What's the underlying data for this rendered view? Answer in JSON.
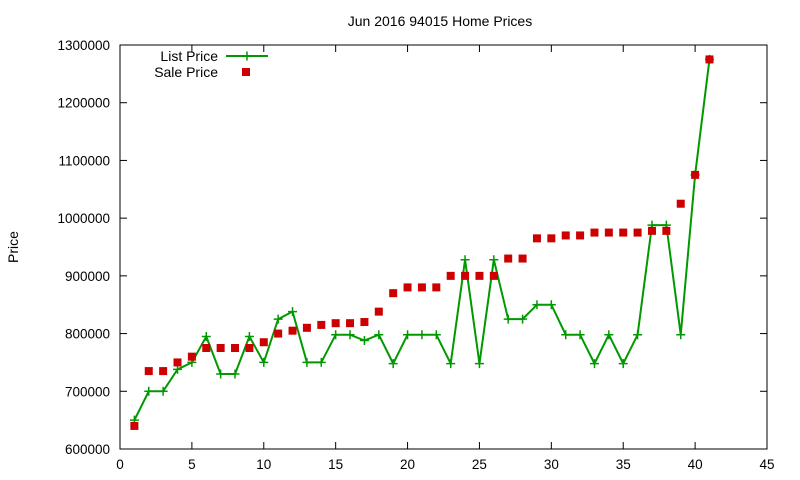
{
  "chart_data": {
    "type": "line",
    "title": "Jun 2016 94015 Home Prices",
    "xlabel": "",
    "ylabel": "Price",
    "xlim": [
      0,
      45
    ],
    "ylim": [
      600000,
      1300000
    ],
    "xticks": [
      0,
      5,
      10,
      15,
      20,
      25,
      30,
      35,
      40,
      45
    ],
    "yticks": [
      600000,
      700000,
      800000,
      900000,
      1000000,
      1100000,
      1200000,
      1300000
    ],
    "grid": false,
    "legend_placement": "top-left",
    "x": [
      1,
      2,
      3,
      4,
      5,
      6,
      7,
      8,
      9,
      10,
      11,
      12,
      13,
      14,
      15,
      16,
      17,
      18,
      19,
      20,
      21,
      22,
      23,
      24,
      25,
      26,
      27,
      28,
      29,
      30,
      31,
      32,
      33,
      34,
      35,
      36,
      37,
      38,
      39,
      40,
      41
    ],
    "series": [
      {
        "name": "List Price",
        "style": "line+cross",
        "color": "#009900",
        "values": [
          650000,
          700000,
          700000,
          738000,
          750000,
          795000,
          730000,
          730000,
          795000,
          750000,
          825000,
          838000,
          750000,
          750000,
          798000,
          798000,
          788000,
          798000,
          748000,
          798000,
          798000,
          798000,
          748000,
          928000,
          748000,
          928000,
          825000,
          825000,
          850000,
          850000,
          798000,
          798000,
          748000,
          798000,
          748000,
          798000,
          988000,
          988000,
          798000,
          1075000,
          1275000
        ]
      },
      {
        "name": "Sale Price",
        "style": "square-markers",
        "color": "#cc0000",
        "values": [
          640000,
          735000,
          735000,
          750000,
          760000,
          775000,
          775000,
          775000,
          775000,
          785000,
          800000,
          805000,
          810000,
          815000,
          818000,
          818000,
          820000,
          838000,
          870000,
          880000,
          880000,
          880000,
          900000,
          900000,
          900000,
          900000,
          930000,
          930000,
          965000,
          965000,
          970000,
          970000,
          975000,
          975000,
          975000,
          975000,
          978000,
          978000,
          1025000,
          1075000,
          1275000
        ]
      }
    ]
  }
}
